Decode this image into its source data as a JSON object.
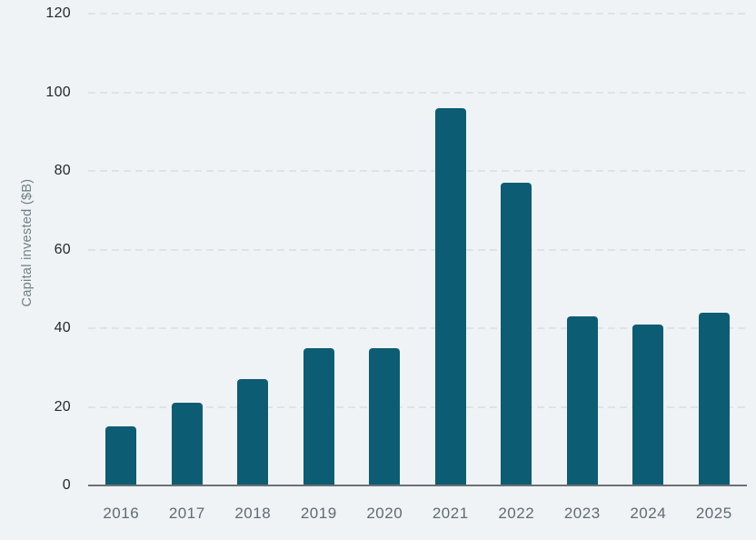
{
  "chart_data": {
    "type": "bar",
    "categories": [
      "2016",
      "2017",
      "2018",
      "2019",
      "2020",
      "2021",
      "2022",
      "2023",
      "2024",
      "2025"
    ],
    "values": [
      15,
      21,
      27,
      35,
      35,
      96,
      77,
      43,
      41,
      44
    ],
    "title": "",
    "xlabel": "",
    "ylabel": "Capital invested ($B)",
    "ylim": [
      0,
      120
    ],
    "ytick_step": 20,
    "ytick_labels": [
      "0",
      "20",
      "40",
      "60",
      "80",
      "100",
      "120"
    ],
    "grid": "horizontal-dashed",
    "legend": "none",
    "colors": {
      "bar": "#0c5d73",
      "background": "#f0f3f5",
      "gridline": "#dfe3e5",
      "axis_line": "#6b7174",
      "y_tick_text": "#26292c",
      "x_tick_text": "#5d6c75",
      "y_title_text": "#6f8086"
    }
  }
}
